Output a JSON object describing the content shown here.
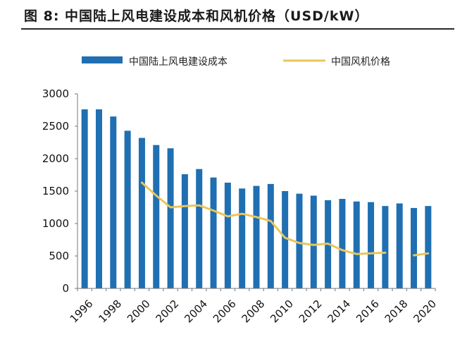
{
  "figure": {
    "title": "图 8: 中国陆上风电建设成本和风机价格（USD/kW）"
  },
  "chart_data": {
    "type": "bar",
    "title": "图 8: 中国陆上风电建设成本和风机价格（USD/kW）",
    "xlabel": "",
    "ylabel": "",
    "categories": [
      "1996",
      "1997",
      "1998",
      "1999",
      "2000",
      "2001",
      "2002",
      "2003",
      "2004",
      "2005",
      "2006",
      "2007",
      "2008",
      "2009",
      "2010",
      "2011",
      "2012",
      "2013",
      "2014",
      "2015",
      "2016",
      "2017",
      "2018",
      "2019",
      "2020"
    ],
    "x_tick_labels": [
      "1996",
      "1998",
      "2000",
      "2002",
      "2004",
      "2006",
      "2008",
      "2010",
      "2012",
      "2014",
      "2016",
      "2018",
      "2020"
    ],
    "ylim": [
      0,
      3000
    ],
    "y_ticks": [
      0,
      500,
      1000,
      1500,
      2000,
      2500,
      3000
    ],
    "grid": false,
    "legend_position": "top",
    "series": [
      {
        "name": "中国陆上风电建设成本",
        "type": "bar",
        "color": "#1f6fb2",
        "values": [
          2760,
          2760,
          2650,
          2430,
          2320,
          2210,
          2160,
          1760,
          1840,
          1710,
          1630,
          1540,
          1580,
          1610,
          1500,
          1460,
          1430,
          1360,
          1380,
          1340,
          1330,
          1270,
          1310,
          1240,
          1270
        ]
      },
      {
        "name": "中国风机价格",
        "type": "line",
        "color": "#e8c65a",
        "values": [
          null,
          null,
          null,
          null,
          1630,
          1430,
          1250,
          1270,
          1280,
          1200,
          1110,
          1150,
          1100,
          1040,
          780,
          700,
          670,
          690,
          590,
          530,
          540,
          550,
          null,
          510,
          540
        ]
      }
    ]
  }
}
